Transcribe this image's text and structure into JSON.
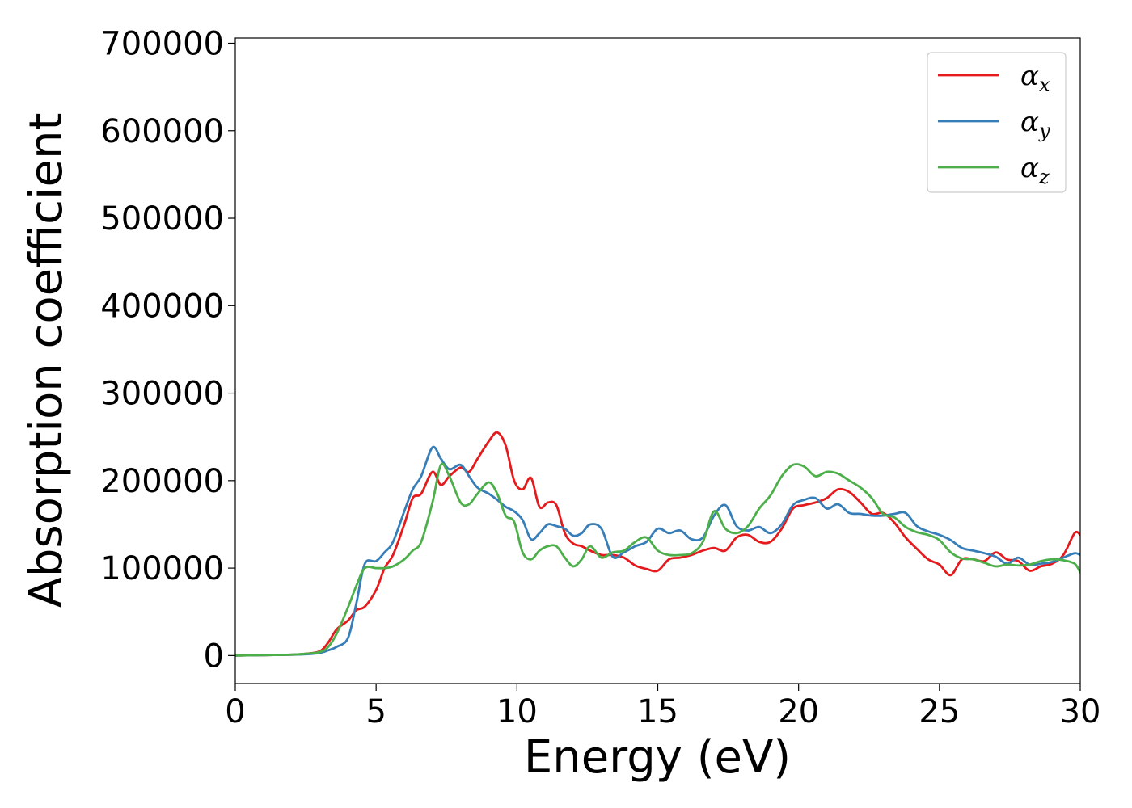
{
  "chart_data": {
    "type": "line",
    "title": "",
    "xlabel": "Energy (eV)",
    "ylabel": "Absorption coefficient",
    "xlim": [
      0,
      30
    ],
    "ylim": [
      -32000,
      706000
    ],
    "xticks": [
      0,
      5,
      10,
      15,
      20,
      25,
      30
    ],
    "xtick_labels": [
      "0",
      "5",
      "10",
      "15",
      "20",
      "25",
      "30"
    ],
    "yticks": [
      0,
      100000,
      200000,
      300000,
      400000,
      500000,
      600000,
      700000
    ],
    "ytick_labels": [
      "0",
      "100000",
      "200000",
      "300000",
      "400000",
      "500000",
      "600000",
      "700000"
    ],
    "grid": false,
    "legend_position": "top-right",
    "series": [
      {
        "name": "α_x",
        "legend_symbol": "α",
        "legend_subscript": "x",
        "color": "#e41a1c",
        "x": [
          0,
          1,
          2,
          2.5,
          3,
          3.3,
          3.6,
          4,
          4.3,
          4.6,
          5,
          5.3,
          5.6,
          6,
          6.3,
          6.6,
          7,
          7.3,
          7.6,
          8,
          8.3,
          8.6,
          9,
          9.3,
          9.6,
          9.9,
          10.2,
          10.5,
          10.8,
          11.1,
          11.4,
          11.7,
          12,
          12.3,
          12.6,
          13,
          13.4,
          13.8,
          14.2,
          14.6,
          15,
          15.4,
          15.8,
          16.2,
          16.6,
          17,
          17.4,
          17.8,
          18.2,
          18.6,
          19,
          19.4,
          19.8,
          20.2,
          20.6,
          21,
          21.4,
          21.8,
          22.2,
          22.6,
          23,
          23.4,
          23.8,
          24.2,
          24.6,
          25,
          25.4,
          25.8,
          26.2,
          26.6,
          27,
          27.4,
          27.8,
          28.2,
          28.6,
          29,
          29.4,
          29.8,
          30
        ],
        "values": [
          0,
          500,
          1000,
          2000,
          5000,
          15000,
          30000,
          40000,
          52000,
          56000,
          75000,
          100000,
          115000,
          150000,
          180000,
          185000,
          210000,
          195000,
          205000,
          215000,
          210000,
          225000,
          245000,
          255000,
          240000,
          200000,
          190000,
          203000,
          170000,
          175000,
          172000,
          140000,
          128000,
          125000,
          120000,
          115000,
          115000,
          112000,
          103000,
          99000,
          97000,
          110000,
          112000,
          115000,
          120000,
          123000,
          120000,
          135000,
          138000,
          130000,
          130000,
          145000,
          168000,
          172000,
          175000,
          180000,
          190000,
          187000,
          175000,
          162000,
          163000,
          152000,
          135000,
          122000,
          110000,
          104000,
          92000,
          110000,
          110000,
          108000,
          118000,
          110000,
          108000,
          97000,
          102000,
          105000,
          115000,
          140000,
          138000
        ]
      },
      {
        "name": "α_y",
        "legend_symbol": "α",
        "legend_subscript": "y",
        "color": "#377eb8",
        "x": [
          0,
          1,
          2,
          2.5,
          3,
          3.3,
          3.6,
          4,
          4.3,
          4.6,
          5,
          5.3,
          5.6,
          6,
          6.3,
          6.6,
          7,
          7.3,
          7.6,
          8,
          8.3,
          8.6,
          9,
          9.3,
          9.6,
          9.9,
          10.2,
          10.5,
          10.8,
          11.1,
          11.4,
          11.7,
          12,
          12.3,
          12.6,
          13,
          13.4,
          13.8,
          14.2,
          14.6,
          15,
          15.4,
          15.8,
          16.2,
          16.6,
          17,
          17.4,
          17.8,
          18.2,
          18.6,
          19,
          19.4,
          19.8,
          20.2,
          20.6,
          21,
          21.4,
          21.8,
          22.2,
          22.6,
          23,
          23.4,
          23.8,
          24.2,
          24.6,
          25,
          25.4,
          25.8,
          26.2,
          26.6,
          27,
          27.4,
          27.8,
          28.2,
          28.6,
          29,
          29.4,
          29.8,
          30
        ],
        "values": [
          0,
          500,
          1000,
          1500,
          3000,
          6000,
          10000,
          20000,
          60000,
          105000,
          108000,
          118000,
          130000,
          165000,
          190000,
          205000,
          238000,
          225000,
          213000,
          218000,
          205000,
          192000,
          185000,
          178000,
          170000,
          165000,
          155000,
          133000,
          140000,
          150000,
          148000,
          145000,
          137000,
          140000,
          150000,
          145000,
          113000,
          118000,
          125000,
          130000,
          145000,
          140000,
          143000,
          133000,
          135000,
          160000,
          172000,
          148000,
          143000,
          147000,
          140000,
          150000,
          172000,
          178000,
          180000,
          168000,
          173000,
          163000,
          162000,
          160000,
          160000,
          162000,
          163000,
          148000,
          142000,
          138000,
          132000,
          123000,
          120000,
          117000,
          113000,
          105000,
          112000,
          104000,
          105000,
          107000,
          112000,
          117000,
          115000
        ]
      },
      {
        "name": "α_z",
        "legend_symbol": "α",
        "legend_subscript": "z",
        "color": "#4daf4a",
        "x": [
          0,
          1,
          2,
          2.5,
          3,
          3.3,
          3.6,
          4,
          4.3,
          4.6,
          5,
          5.3,
          5.6,
          6,
          6.3,
          6.6,
          7,
          7.3,
          7.6,
          8,
          8.3,
          8.6,
          9,
          9.3,
          9.6,
          9.9,
          10.2,
          10.5,
          10.8,
          11.1,
          11.4,
          11.7,
          12,
          12.3,
          12.6,
          13,
          13.4,
          13.8,
          14.2,
          14.6,
          15,
          15.4,
          15.8,
          16.2,
          16.6,
          17,
          17.4,
          17.8,
          18.2,
          18.6,
          19,
          19.4,
          19.8,
          20.2,
          20.6,
          21,
          21.4,
          21.8,
          22.2,
          22.6,
          23,
          23.4,
          23.8,
          24.2,
          24.6,
          25,
          25.4,
          25.8,
          26.2,
          26.6,
          27,
          27.4,
          27.8,
          28.2,
          28.6,
          29,
          29.4,
          29.8,
          30
        ],
        "values": [
          0,
          500,
          1000,
          2000,
          4000,
          10000,
          25000,
          55000,
          80000,
          100000,
          100000,
          100000,
          102000,
          110000,
          120000,
          130000,
          175000,
          218000,
          205000,
          175000,
          173000,
          185000,
          198000,
          185000,
          160000,
          153000,
          118000,
          110000,
          120000,
          125000,
          125000,
          112000,
          102000,
          110000,
          125000,
          112000,
          118000,
          120000,
          130000,
          135000,
          120000,
          115000,
          115000,
          117000,
          130000,
          165000,
          145000,
          140000,
          148000,
          168000,
          183000,
          205000,
          218000,
          216000,
          205000,
          210000,
          208000,
          200000,
          192000,
          180000,
          162000,
          158000,
          147000,
          141000,
          138000,
          132000,
          118000,
          111000,
          110000,
          106000,
          102000,
          104000,
          103000,
          104000,
          108000,
          110000,
          109000,
          105000,
          95000
        ]
      }
    ]
  }
}
